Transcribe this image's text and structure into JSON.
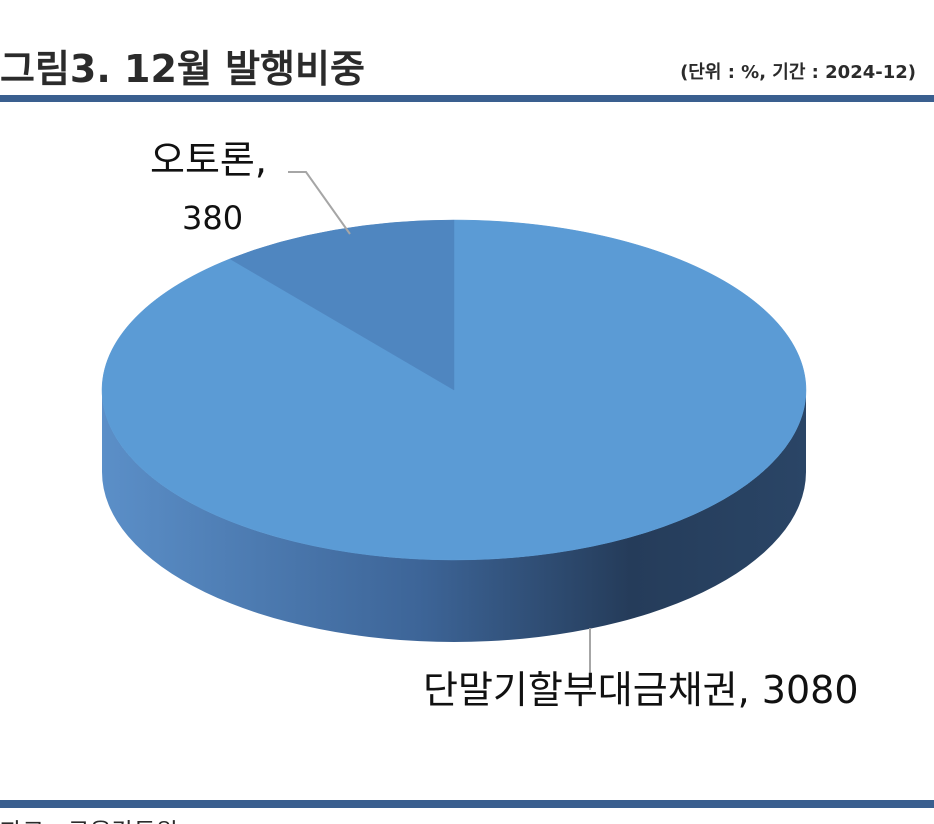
{
  "header": {
    "title": "그림3. 12월 발행비중",
    "unit": "(단위 : %, 기간 : 2024-12)"
  },
  "footer": {
    "source": "자료 : 금융감독원"
  },
  "chart_data": {
    "type": "pie",
    "title": "그림3. 12월 발행비중",
    "categories": [
      "단말기할부대금채권",
      "오토론"
    ],
    "values": [
      3080,
      380
    ],
    "labels": [
      "단말기할부대금채권, 3080",
      "오토론, 380"
    ],
    "colors": [
      "#5b9bd5",
      "#4f86c0"
    ],
    "style": "3d"
  }
}
